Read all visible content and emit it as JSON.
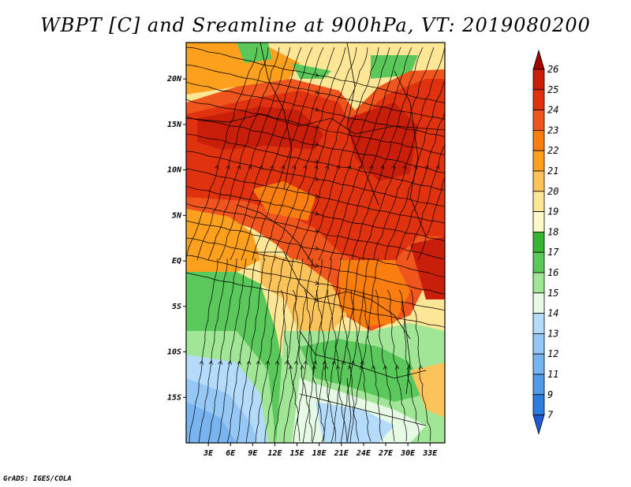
{
  "title": "WBPT [C] and Sreamline at 900hPa, VT: 2019080200",
  "footer": "GrADS: IGES/COLA",
  "map": {
    "lon_range": [
      0,
      35
    ],
    "lat_range": [
      -20,
      24
    ],
    "lon_ticks": [
      {
        "value": 3,
        "label": "3E"
      },
      {
        "value": 6,
        "label": "6E"
      },
      {
        "value": 9,
        "label": "9E"
      },
      {
        "value": 12,
        "label": "12E"
      },
      {
        "value": 15,
        "label": "15E"
      },
      {
        "value": 18,
        "label": "18E"
      },
      {
        "value": 21,
        "label": "21E"
      },
      {
        "value": 24,
        "label": "24E"
      },
      {
        "value": 27,
        "label": "27E"
      },
      {
        "value": 30,
        "label": "30E"
      },
      {
        "value": 33,
        "label": "33E"
      }
    ],
    "lat_ticks": [
      {
        "value": 20,
        "label": "20N"
      },
      {
        "value": 15,
        "label": "15N"
      },
      {
        "value": 10,
        "label": "10N"
      },
      {
        "value": 5,
        "label": "5N"
      },
      {
        "value": 0,
        "label": "EQ"
      },
      {
        "value": -5,
        "label": "5S"
      },
      {
        "value": -10,
        "label": "10S"
      },
      {
        "value": -15,
        "label": "15S"
      }
    ]
  },
  "colorbar": {
    "levels": [
      {
        "label": "26",
        "color": "#a50000"
      },
      {
        "label": "25",
        "color": "#c81e0a"
      },
      {
        "label": "24",
        "color": "#e1320f"
      },
      {
        "label": "23",
        "color": "#f0551e"
      },
      {
        "label": "22",
        "color": "#fa7d0f"
      },
      {
        "label": "21",
        "color": "#fca01e"
      },
      {
        "label": "20",
        "color": "#fcc35a"
      },
      {
        "label": "19",
        "color": "#fde696"
      },
      {
        "label": "18",
        "color": "#fff8c8"
      },
      {
        "label": "17",
        "color": "#37b432"
      },
      {
        "label": "16",
        "color": "#5ac85a"
      },
      {
        "label": "15",
        "color": "#a0e696"
      },
      {
        "label": "14",
        "color": "#e6fae6"
      },
      {
        "label": "13",
        "color": "#b4dcfa"
      },
      {
        "label": "12",
        "color": "#96c8f5"
      },
      {
        "label": "11",
        "color": "#78b4f0"
      },
      {
        "label": "9",
        "color": "#509be6"
      },
      {
        "label": "7",
        "color": "#2d7dde"
      }
    ],
    "bottom_color": "#1e5ad2"
  }
}
